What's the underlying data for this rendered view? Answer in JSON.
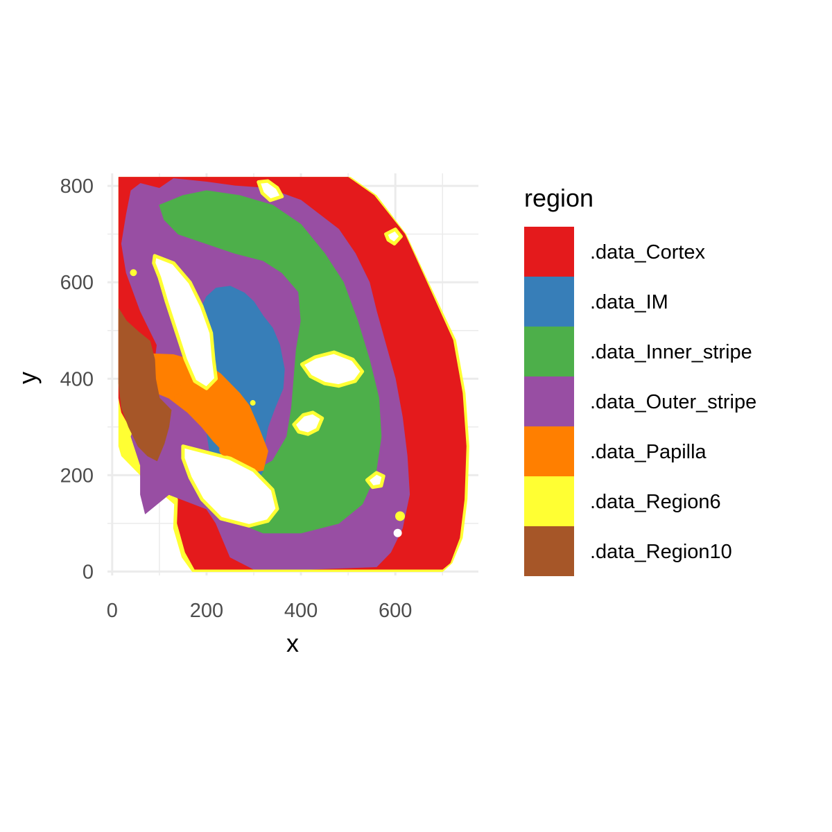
{
  "chart_data": {
    "type": "scatter",
    "title": "",
    "xlabel": "x",
    "ylabel": "y",
    "xlim": [
      -10,
      776
    ],
    "ylim": [
      -8,
      826
    ],
    "x_ticks": [
      0,
      200,
      400,
      600
    ],
    "y_ticks": [
      0,
      200,
      400,
      600,
      800
    ],
    "grid": true,
    "legend": {
      "title": "region",
      "position": "right",
      "entries": [
        {
          "label": ".data_Cortex",
          "color": "#E41A1C"
        },
        {
          "label": ".data_IM",
          "color": "#377EB8"
        },
        {
          "label": ".data_Inner_stripe",
          "color": "#4DAF4A"
        },
        {
          "label": ".data_Outer_stripe",
          "color": "#984EA3"
        },
        {
          "label": ".data_Papilla",
          "color": "#FF7F00"
        },
        {
          "label": ".data_Region6",
          "color": "#FFFF33"
        },
        {
          "label": ".data_Region10",
          "color": "#A65628"
        }
      ]
    },
    "regions": [
      {
        "name": ".data_Region6",
        "color": "#FFFF33",
        "outline": [
          [
            14,
            818
          ],
          [
            505,
            818
          ],
          [
            560,
            780
          ],
          [
            622,
            700
          ],
          [
            665,
            610
          ],
          [
            728,
            480
          ],
          [
            748,
            370
          ],
          [
            756,
            260
          ],
          [
            752,
            150
          ],
          [
            742,
            70
          ],
          [
            720,
            18
          ],
          [
            700,
            0
          ],
          [
            170,
            0
          ],
          [
            148,
            30
          ],
          [
            130,
            90
          ],
          [
            132,
            140
          ],
          [
            60,
            200
          ],
          [
            20,
            240
          ],
          [
            14,
            260
          ]
        ]
      },
      {
        "name": ".data_Cortex",
        "color": "#E41A1C",
        "outline": [
          [
            14,
            818
          ],
          [
            500,
            818
          ],
          [
            555,
            780
          ],
          [
            620,
            700
          ],
          [
            662,
            610
          ],
          [
            722,
            480
          ],
          [
            742,
            370
          ],
          [
            750,
            260
          ],
          [
            746,
            150
          ],
          [
            736,
            70
          ],
          [
            716,
            18
          ],
          [
            700,
            5
          ],
          [
            175,
            5
          ],
          [
            155,
            40
          ],
          [
            138,
            100
          ],
          [
            140,
            150
          ],
          [
            120,
            200
          ],
          [
            60,
            260
          ],
          [
            20,
            330
          ],
          [
            14,
            360
          ]
        ]
      },
      {
        "name": ".data_Outer_stripe",
        "color": "#984EA3",
        "outline": [
          [
            40,
            790
          ],
          [
            60,
            805
          ],
          [
            100,
            795
          ],
          [
            130,
            815
          ],
          [
            200,
            808
          ],
          [
            260,
            800
          ],
          [
            330,
            795
          ],
          [
            400,
            770
          ],
          [
            440,
            740
          ],
          [
            480,
            710
          ],
          [
            515,
            660
          ],
          [
            545,
            600
          ],
          [
            560,
            540
          ],
          [
            580,
            470
          ],
          [
            600,
            400
          ],
          [
            615,
            320
          ],
          [
            625,
            240
          ],
          [
            630,
            160
          ],
          [
            615,
            90
          ],
          [
            590,
            40
          ],
          [
            560,
            10
          ],
          [
            420,
            5
          ],
          [
            300,
            5
          ],
          [
            250,
            30
          ],
          [
            220,
            100
          ],
          [
            200,
            130
          ],
          [
            120,
            160
          ],
          [
            70,
            120
          ],
          [
            60,
            160
          ],
          [
            60,
            220
          ],
          [
            40,
            280
          ],
          [
            70,
            360
          ],
          [
            90,
            430
          ],
          [
            95,
            470
          ],
          [
            60,
            540
          ],
          [
            30,
            620
          ],
          [
            20,
            680
          ],
          [
            30,
            740
          ]
        ]
      },
      {
        "name": ".data_Inner_stripe",
        "color": "#4DAF4A",
        "outline": [
          [
            100,
            760
          ],
          [
            150,
            780
          ],
          [
            200,
            790
          ],
          [
            270,
            780
          ],
          [
            340,
            760
          ],
          [
            400,
            720
          ],
          [
            450,
            660
          ],
          [
            490,
            600
          ],
          [
            520,
            520
          ],
          [
            545,
            440
          ],
          [
            565,
            360
          ],
          [
            570,
            280
          ],
          [
            558,
            200
          ],
          [
            530,
            140
          ],
          [
            480,
            100
          ],
          [
            400,
            80
          ],
          [
            320,
            80
          ],
          [
            270,
            100
          ],
          [
            240,
            130
          ],
          [
            250,
            180
          ],
          [
            340,
            230
          ],
          [
            370,
            280
          ],
          [
            380,
            340
          ],
          [
            385,
            400
          ],
          [
            390,
            460
          ],
          [
            400,
            520
          ],
          [
            395,
            580
          ],
          [
            360,
            620
          ],
          [
            320,
            645
          ],
          [
            260,
            660
          ],
          [
            200,
            680
          ],
          [
            140,
            700
          ],
          [
            110,
            730
          ]
        ]
      },
      {
        "name": ".data_IM",
        "color": "#377EB8",
        "outline": [
          [
            220,
            588
          ],
          [
            250,
            592
          ],
          [
            280,
            578
          ],
          [
            300,
            560
          ],
          [
            320,
            530
          ],
          [
            340,
            505
          ],
          [
            355,
            470
          ],
          [
            365,
            420
          ],
          [
            362,
            380
          ],
          [
            345,
            340
          ],
          [
            330,
            300
          ],
          [
            322,
            260
          ],
          [
            320,
            210
          ],
          [
            305,
            180
          ],
          [
            270,
            180
          ],
          [
            230,
            190
          ],
          [
            210,
            230
          ],
          [
            200,
            290
          ],
          [
            185,
            340
          ],
          [
            170,
            400
          ],
          [
            160,
            440
          ],
          [
            165,
            480
          ],
          [
            180,
            530
          ],
          [
            200,
            570
          ]
        ]
      },
      {
        "name": ".data_Papilla",
        "color": "#FF7F00",
        "outline": [
          [
            20,
            430
          ],
          [
            40,
            448
          ],
          [
            80,
            452
          ],
          [
            130,
            450
          ],
          [
            165,
            440
          ],
          [
            200,
            430
          ],
          [
            230,
            410
          ],
          [
            250,
            390
          ],
          [
            270,
            370
          ],
          [
            290,
            345
          ],
          [
            310,
            300
          ],
          [
            330,
            250
          ],
          [
            320,
            210
          ],
          [
            290,
            205
          ],
          [
            265,
            220
          ],
          [
            240,
            245
          ],
          [
            215,
            270
          ],
          [
            190,
            300
          ],
          [
            160,
            330
          ],
          [
            120,
            360
          ],
          [
            70,
            380
          ],
          [
            35,
            395
          ],
          [
            18,
            410
          ]
        ]
      },
      {
        "name": ".data_Region10",
        "color": "#A65628",
        "outline": [
          [
            14,
            545
          ],
          [
            30,
            520
          ],
          [
            55,
            498
          ],
          [
            80,
            478
          ],
          [
            90,
            440
          ],
          [
            92,
            400
          ],
          [
            100,
            360
          ],
          [
            125,
            335
          ],
          [
            120,
            300
          ],
          [
            110,
            265
          ],
          [
            95,
            230
          ],
          [
            75,
            240
          ],
          [
            55,
            260
          ],
          [
            35,
            300
          ],
          [
            20,
            340
          ],
          [
            14,
            390
          ]
        ]
      }
    ],
    "holes": [
      [
        [
          90,
          655
        ],
        [
          130,
          640
        ],
        [
          165,
          600
        ],
        [
          190,
          550
        ],
        [
          210,
          495
        ],
        [
          215,
          440
        ],
        [
          220,
          400
        ],
        [
          200,
          380
        ],
        [
          175,
          395
        ],
        [
          155,
          440
        ],
        [
          135,
          500
        ],
        [
          115,
          560
        ],
        [
          100,
          610
        ],
        [
          88,
          640
        ]
      ],
      [
        [
          150,
          260
        ],
        [
          190,
          250
        ],
        [
          250,
          235
        ],
        [
          300,
          210
        ],
        [
          340,
          170
        ],
        [
          350,
          130
        ],
        [
          330,
          105
        ],
        [
          290,
          95
        ],
        [
          230,
          110
        ],
        [
          190,
          150
        ],
        [
          165,
          195
        ],
        [
          150,
          235
        ]
      ],
      [
        [
          402,
          430
        ],
        [
          430,
          445
        ],
        [
          470,
          455
        ],
        [
          510,
          440
        ],
        [
          530,
          415
        ],
        [
          515,
          395
        ],
        [
          480,
          385
        ],
        [
          450,
          390
        ],
        [
          420,
          405
        ]
      ],
      [
        [
          385,
          305
        ],
        [
          405,
          325
        ],
        [
          425,
          330
        ],
        [
          445,
          318
        ],
        [
          435,
          295
        ],
        [
          415,
          285
        ],
        [
          395,
          290
        ]
      ],
      [
        [
          310,
          808
        ],
        [
          330,
          810
        ],
        [
          350,
          796
        ],
        [
          360,
          778
        ],
        [
          335,
          770
        ],
        [
          318,
          785
        ]
      ],
      [
        [
          540,
          190
        ],
        [
          560,
          205
        ],
        [
          575,
          198
        ],
        [
          570,
          178
        ],
        [
          552,
          175
        ]
      ],
      [
        [
          580,
          700
        ],
        [
          600,
          710
        ],
        [
          612,
          695
        ],
        [
          598,
          680
        ],
        [
          585,
          688
        ]
      ]
    ],
    "specks": [
      {
        "color": "#FF7F00",
        "points": [
          [
            135,
            380,
            8
          ],
          [
            240,
            253,
            9
          ],
          [
            140,
            360,
            6
          ]
        ]
      },
      {
        "color": "#FFFF33",
        "points": [
          [
            45,
            620,
            5
          ],
          [
            610,
            115,
            7
          ],
          [
            298,
            350,
            4
          ]
        ]
      },
      {
        "color": "#FFFFFF",
        "points": [
          [
            605,
            80,
            6
          ]
        ]
      }
    ]
  }
}
